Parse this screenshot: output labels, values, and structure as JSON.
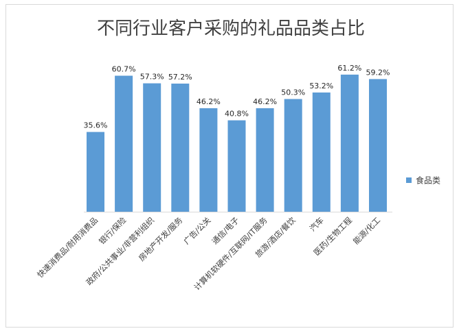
{
  "chart_data": {
    "type": "bar",
    "title": "不同行业客户采购的礼品品类占比",
    "categories": [
      "快速消费品/耐用消费品",
      "银行/保险",
      "政府/公共事业/非营利组织",
      "房地产开发/服务",
      "广告/公关",
      "通信/电子",
      "计算机软硬件/互联网/IT服务",
      "旅游/酒店/餐饮",
      "汽车",
      "医药/生物工程",
      "能源/化工"
    ],
    "series": [
      {
        "name": "食品类",
        "values": [
          35.6,
          60.7,
          57.3,
          57.2,
          46.2,
          40.8,
          46.2,
          50.3,
          53.2,
          61.2,
          59.2
        ],
        "labels": [
          "35.6%",
          "60.7%",
          "57.3%",
          "57.2%",
          "46.2%",
          "40.8%",
          "46.2%",
          "50.3%",
          "53.2%",
          "61.2%",
          "59.2%"
        ],
        "color": "#5B9BD5"
      }
    ],
    "ylim": [
      0,
      70
    ],
    "grid": false,
    "legend": "right",
    "xlabel": "",
    "ylabel": ""
  }
}
